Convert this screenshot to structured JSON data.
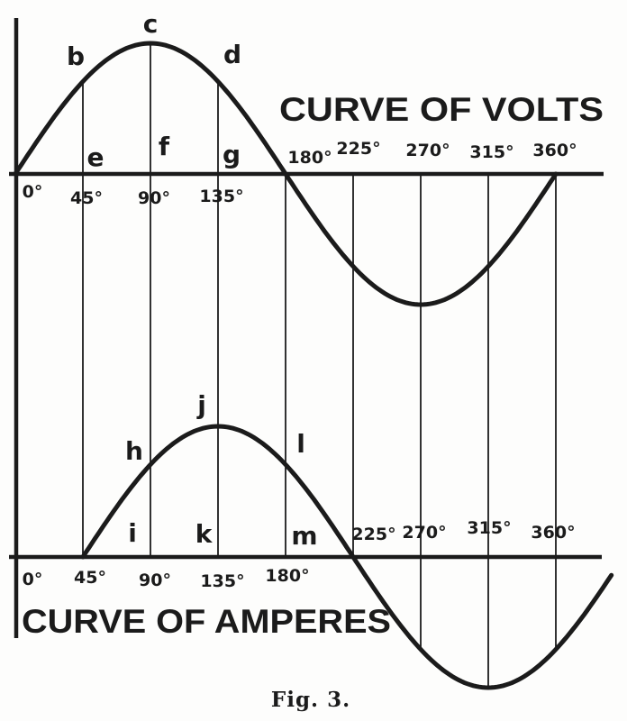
{
  "figure": {
    "caption": "Fig. 3.",
    "ink_color": "#1b1b1b",
    "background_color": "#fdfdfc"
  },
  "chart_data": [
    {
      "id": "volts",
      "type": "line",
      "title": "CURVE OF VOLTS",
      "waveform": "sine",
      "phase_deg": 0,
      "x_unit": "degrees",
      "x": [
        0,
        45,
        90,
        135,
        180,
        225,
        270,
        315,
        360
      ],
      "values": [
        0,
        0.71,
        1,
        0.71,
        0,
        -0.71,
        -1,
        -0.71,
        0
      ],
      "ylim": [
        -1,
        1
      ],
      "grid": "vertical-at-45-deg-steps",
      "ticks_below_axis": [
        "0°",
        "45°",
        "90°",
        "135°"
      ],
      "ticks_above_axis": [
        "180°",
        "225°",
        "270°",
        "315°",
        "360°"
      ],
      "curve_labels": [
        "b",
        "c",
        "d"
      ],
      "axis_labels": [
        "e",
        "f",
        "g"
      ]
    },
    {
      "id": "amperes",
      "type": "line",
      "title": "CURVE OF AMPERES",
      "waveform": "sine",
      "phase_deg": 45,
      "x_unit": "degrees",
      "x": [
        45,
        90,
        135,
        180,
        225,
        270,
        315,
        360
      ],
      "values": [
        0,
        0.71,
        1,
        0.71,
        0,
        -0.71,
        -1,
        -0.71
      ],
      "ylim": [
        -1,
        1
      ],
      "grid": "vertical-at-45-deg-steps",
      "ticks_below_axis": [
        "0°",
        "45°",
        "90°",
        "135°",
        "180°"
      ],
      "ticks_above_axis": [
        "225°",
        "270°",
        "315°",
        "360°"
      ],
      "curve_labels": [
        "h",
        "j",
        "l"
      ],
      "axis_labels": [
        "i",
        "k",
        "m"
      ]
    }
  ]
}
